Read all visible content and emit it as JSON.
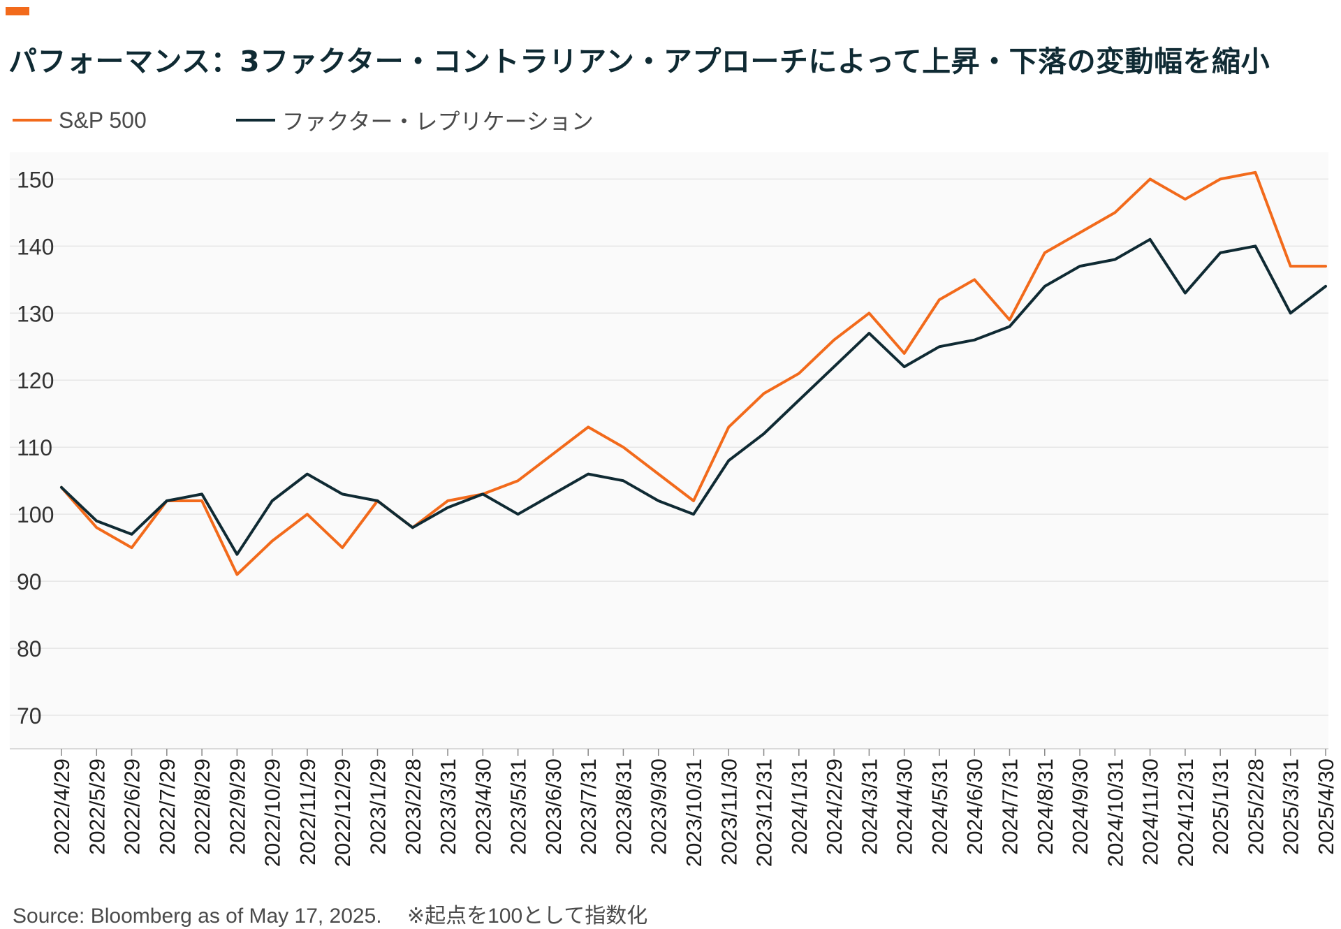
{
  "header": {
    "title": "パフォーマンス：3ファクター・コントラリアン・アプローチによって上昇・下落の変動幅を縮小",
    "accent_color": "#f26a1b"
  },
  "footer": {
    "source": "Source: Bloomberg as of May 17, 2025.",
    "note": "※起点を100として指数化"
  },
  "chart_data": {
    "type": "line",
    "title": "パフォーマンス：3ファクター・コントラリアン・アプローチによって上昇・下落の変動幅を縮小",
    "xlabel": "",
    "ylabel": "",
    "ylim": [
      65,
      154
    ],
    "yticks": [
      70,
      80,
      90,
      100,
      110,
      120,
      130,
      140,
      150
    ],
    "grid": "horizontal",
    "legend": "top-left",
    "categories": [
      "2022/4/29",
      "2022/5/29",
      "2022/6/29",
      "2022/7/29",
      "2022/8/29",
      "2022/9/29",
      "2022/10/29",
      "2022/11/29",
      "2022/12/29",
      "2023/1/29",
      "2023/2/28",
      "2023/3/31",
      "2023/4/30",
      "2023/5/31",
      "2023/6/30",
      "2023/7/31",
      "2023/8/31",
      "2023/9/30",
      "2023/10/31",
      "2023/11/30",
      "2023/12/31",
      "2024/1/31",
      "2024/2/29",
      "2024/3/31",
      "2024/4/30",
      "2024/5/31",
      "2024/6/30",
      "2024/7/31",
      "2024/8/31",
      "2024/9/30",
      "2024/10/31",
      "2024/11/30",
      "2024/12/31",
      "2025/1/31",
      "2025/2/28",
      "2025/3/31",
      "2025/4/30"
    ],
    "series": [
      {
        "name": "S&P 500",
        "color": "#f26a1b",
        "values": [
          104.0,
          98.0,
          95.0,
          102.0,
          102.0,
          91.0,
          96.0,
          100.0,
          95.0,
          102.0,
          98.0,
          102.0,
          103.0,
          105.0,
          109.0,
          113.0,
          110.0,
          106.0,
          102.0,
          113.0,
          118.0,
          121.0,
          126.0,
          130.0,
          124.0,
          132.0,
          135.0,
          129.0,
          139.0,
          142.0,
          145.0,
          150.0,
          147.0,
          150.0,
          151.0,
          137.0,
          137.0
        ]
      },
      {
        "name": "ファクター・レプリケーション",
        "color": "#0f2a33",
        "values": [
          104.0,
          99.0,
          97.0,
          102.0,
          103.0,
          94.0,
          102.0,
          106.0,
          103.0,
          102.0,
          98.0,
          101.0,
          103.0,
          100.0,
          103.0,
          106.0,
          105.0,
          102.0,
          100.0,
          108.0,
          112.0,
          117.0,
          122.0,
          127.0,
          122.0,
          125.0,
          126.0,
          128.0,
          134.0,
          137.0,
          138.0,
          141.0,
          133.0,
          139.0,
          140.0,
          130.0,
          134.0
        ]
      }
    ]
  }
}
